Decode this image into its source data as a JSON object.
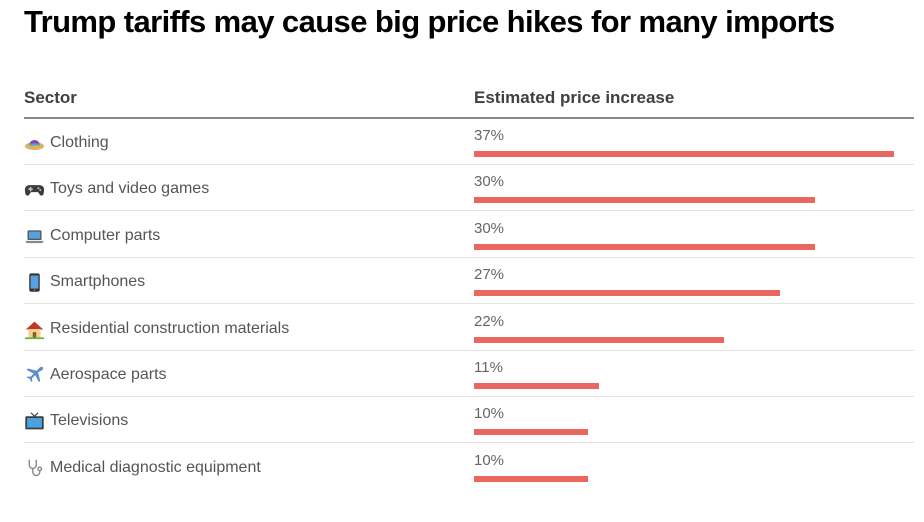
{
  "chart_data": {
    "type": "bar",
    "orientation": "horizontal",
    "title": "Trump tariffs may cause big price hikes for many imports",
    "columns": [
      "Sector",
      "Estimated price increase"
    ],
    "rows": [
      {
        "label": "Clothing",
        "icon": "hat-icon",
        "value": 37,
        "value_label": "37%"
      },
      {
        "label": "Toys and video games",
        "icon": "game-controller-icon",
        "value": 30,
        "value_label": "30%"
      },
      {
        "label": "Computer parts",
        "icon": "laptop-icon",
        "value": 30,
        "value_label": "30%"
      },
      {
        "label": "Smartphones",
        "icon": "smartphone-icon",
        "value": 27,
        "value_label": "27%"
      },
      {
        "label": "Residential construction materials",
        "icon": "house-icon",
        "value": 22,
        "value_label": "22%"
      },
      {
        "label": "Aerospace parts",
        "icon": "airplane-icon",
        "value": 11,
        "value_label": "11%"
      },
      {
        "label": "Televisions",
        "icon": "television-icon",
        "value": 10,
        "value_label": "10%"
      },
      {
        "label": "Medical diagnostic equipment",
        "icon": "stethoscope-icon",
        "value": 10,
        "value_label": "10%"
      }
    ],
    "xlim": [
      0,
      37
    ],
    "bar_color": "#e9675f"
  }
}
